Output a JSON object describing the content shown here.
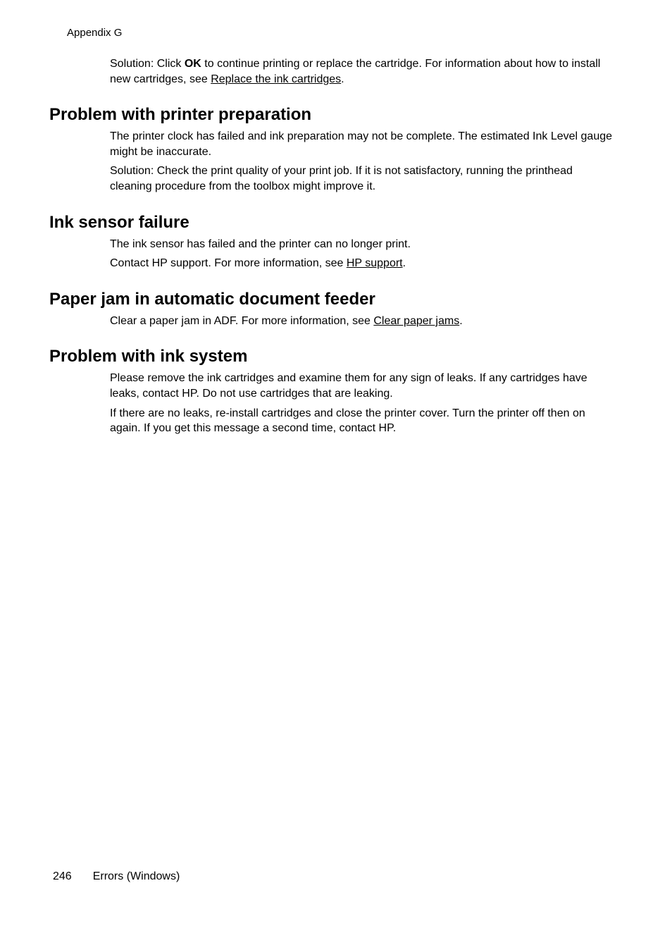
{
  "header": {
    "appendix": "Appendix G"
  },
  "intro": {
    "solution_prefix": "Solution: Click ",
    "ok": "OK",
    "solution_after_ok": " to continue printing or replace the cartridge. For information about how to install new cartridges, see ",
    "link": "Replace the ink cartridges",
    "period": "."
  },
  "sections": [
    {
      "heading": "Problem with printer preparation",
      "paragraphs": [
        {
          "text": "The printer clock has failed and ink preparation may not be complete. The estimated Ink Level gauge might be inaccurate."
        },
        {
          "text": "Solution: Check the print quality of your print job. If it is not satisfactory, running the printhead cleaning procedure from the toolbox might improve it."
        }
      ]
    },
    {
      "heading": "Ink sensor failure",
      "paragraphs": [
        {
          "text": "The ink sensor has failed and the printer can no longer print."
        },
        {
          "prefix": "Contact HP support. For more information, see ",
          "link": "HP support",
          "suffix": "."
        }
      ]
    },
    {
      "heading": "Paper jam in automatic document feeder",
      "paragraphs": [
        {
          "prefix": "Clear a paper jam in ADF. For more information, see ",
          "link": "Clear paper jams",
          "suffix": "."
        }
      ]
    },
    {
      "heading": "Problem with ink system",
      "paragraphs": [
        {
          "text": "Please remove the ink cartridges and examine them for any sign of leaks. If any cartridges have leaks, contact HP. Do not use cartridges that are leaking."
        },
        {
          "text": "If there are no leaks, re-install cartridges and close the printer cover. Turn the printer off then on again. If you get this message a second time, contact HP."
        }
      ]
    }
  ],
  "footer": {
    "page_number": "246",
    "title": "Errors (Windows)"
  }
}
